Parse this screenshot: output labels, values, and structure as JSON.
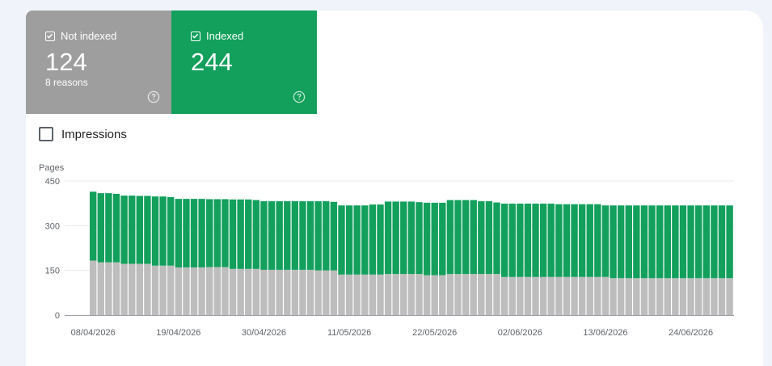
{
  "tiles": {
    "not_indexed": {
      "label": "Not indexed",
      "count": "124",
      "sub": "8 reasons",
      "checked": true,
      "color": "#9e9e9e"
    },
    "indexed": {
      "label": "Indexed",
      "count": "244",
      "checked": true,
      "color": "#12a05c"
    }
  },
  "toggles": {
    "impressions_label": "Impressions",
    "impressions_checked": false
  },
  "chart_data": {
    "type": "bar",
    "stacked": true,
    "ylabel": "Pages",
    "ylim": [
      0,
      450
    ],
    "yticks": [
      0,
      150,
      300,
      450
    ],
    "xtick_labels": [
      "08/04/2026",
      "19/04/2026",
      "30/04/2026",
      "11/05/2026",
      "22/05/2026",
      "02/06/2026",
      "13/06/2026",
      "24/06/2026"
    ],
    "xtick_indices": [
      0,
      11,
      22,
      33,
      44,
      55,
      66,
      77
    ],
    "grid": true,
    "series": [
      {
        "name": "Not indexed",
        "color": "#bdbdbd",
        "values": [
          183,
          177,
          177,
          177,
          172,
          172,
          172,
          172,
          166,
          166,
          166,
          160,
          160,
          160,
          160,
          161,
          161,
          161,
          155,
          155,
          155,
          155,
          152,
          152,
          152,
          152,
          152,
          152,
          152,
          150,
          150,
          150,
          136,
          136,
          136,
          136,
          136,
          136,
          138,
          138,
          138,
          138,
          138,
          134,
          134,
          134,
          138,
          138,
          138,
          138,
          138,
          138,
          138,
          128,
          128,
          128,
          128,
          128,
          128,
          128,
          128,
          128,
          128,
          128,
          128,
          128,
          128,
          124,
          124,
          124,
          124,
          124,
          124,
          124,
          124,
          124,
          124,
          124,
          124,
          124,
          124,
          124,
          124
        ]
      },
      {
        "name": "Indexed",
        "color": "#12a05c",
        "values": [
          231,
          232,
          232,
          230,
          229,
          229,
          228,
          228,
          232,
          232,
          230,
          230,
          230,
          230,
          230,
          228,
          228,
          228,
          233,
          233,
          233,
          231,
          230,
          230,
          230,
          230,
          230,
          230,
          230,
          232,
          232,
          230,
          232,
          232,
          232,
          232,
          235,
          235,
          243,
          243,
          243,
          243,
          241,
          243,
          243,
          243,
          248,
          248,
          248,
          248,
          244,
          244,
          240,
          246,
          246,
          246,
          246,
          246,
          246,
          246,
          244,
          244,
          244,
          244,
          244,
          244,
          240,
          244,
          244,
          244,
          244,
          244,
          244,
          244,
          244,
          244,
          244,
          244,
          244,
          244,
          244,
          244,
          244
        ]
      }
    ]
  }
}
